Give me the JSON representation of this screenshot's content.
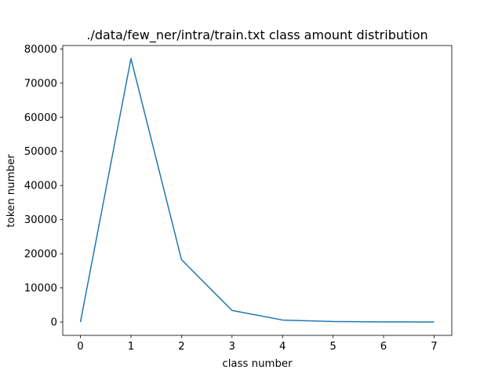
{
  "chart_data": {
    "type": "line",
    "title": "./data/few_ner/intra/train.txt class amount distribution",
    "xlabel": "class number",
    "ylabel": "token number",
    "x": [
      0,
      1,
      2,
      3,
      4,
      5,
      6,
      7
    ],
    "series": [
      {
        "values": [
          0,
          77200,
          18300,
          3400,
          600,
          150,
          50,
          20
        ]
      }
    ],
    "xlim": [
      -0.35,
      7.35
    ],
    "ylim": [
      -3900,
      81000
    ],
    "xticks": [
      "0",
      "1",
      "2",
      "3",
      "4",
      "5",
      "6",
      "7"
    ],
    "yticks": [
      "0",
      "10000",
      "20000",
      "30000",
      "40000",
      "50000",
      "60000",
      "70000",
      "80000"
    ],
    "line_color": "#1f77b4",
    "grid": false,
    "legend": false
  }
}
